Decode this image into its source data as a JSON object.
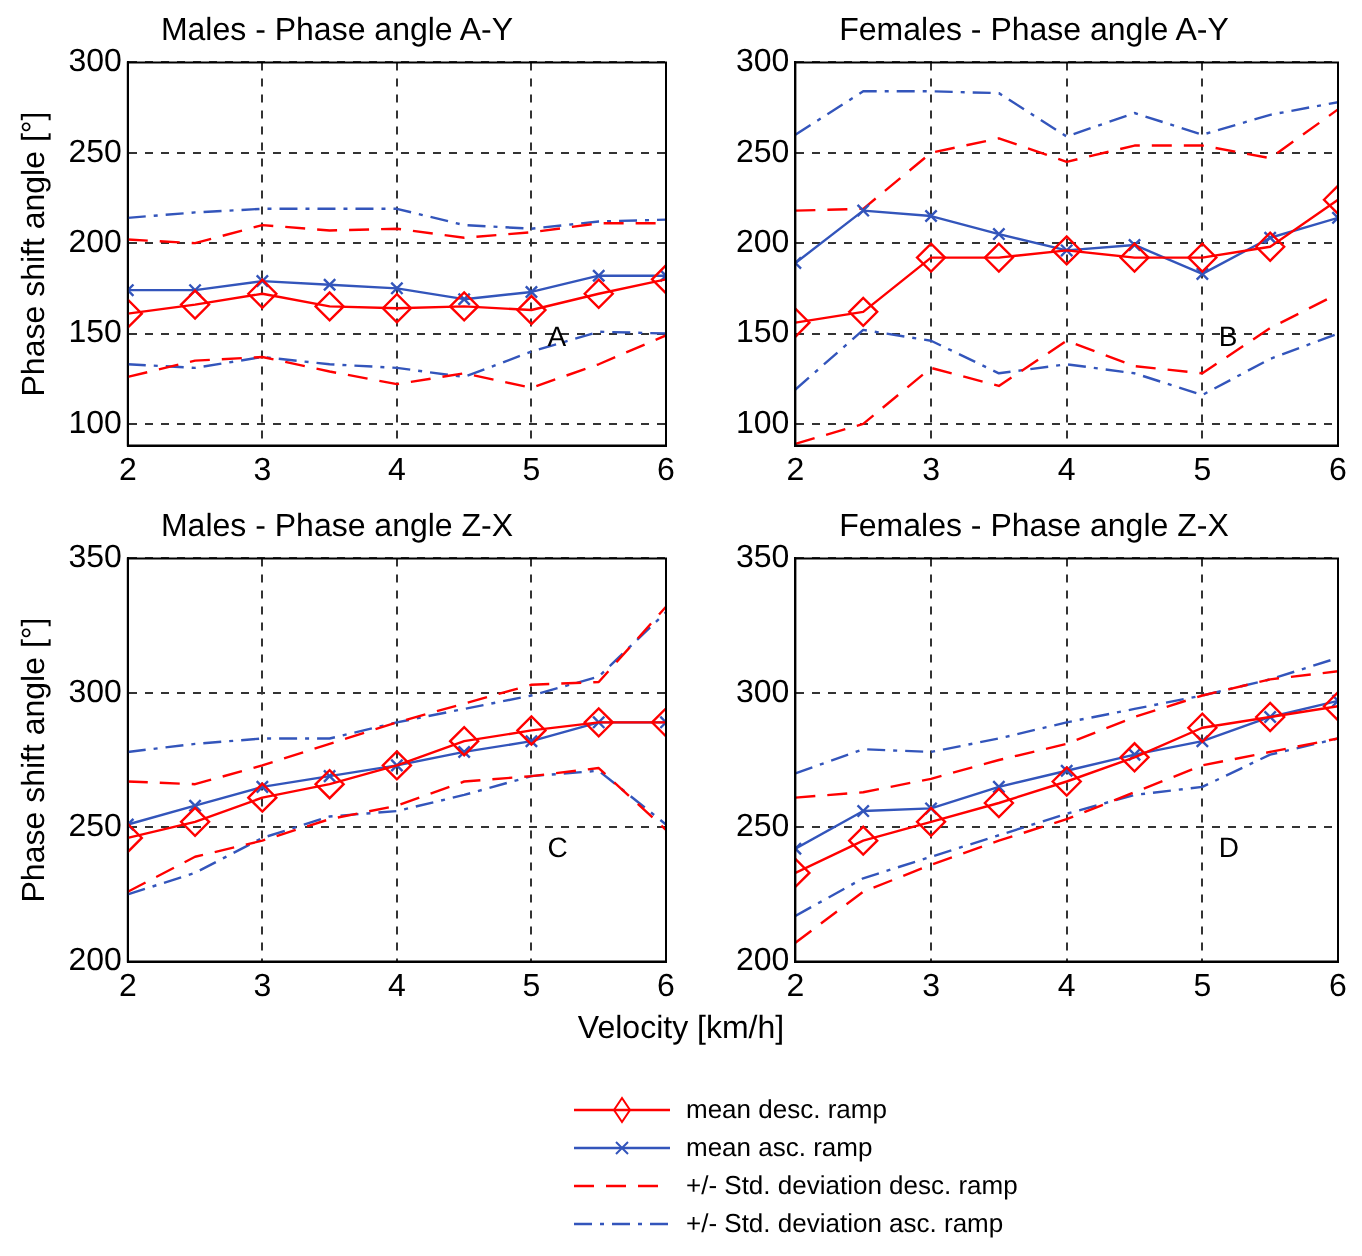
{
  "chart_data": [
    {
      "type": "line",
      "title": "Males - Phase angle A-Y",
      "ylabel": "Phase shift angle [°]",
      "x": [
        2,
        2.5,
        3,
        3.5,
        4,
        4.5,
        5,
        5.5,
        6
      ],
      "xlim": [
        2,
        6
      ],
      "xticks": [
        2,
        3,
        4,
        5,
        6
      ],
      "ylim": [
        88,
        300
      ],
      "yticks": [
        100,
        150,
        200,
        250,
        300
      ],
      "grid": true,
      "legend": "bottom",
      "annotations": [
        "A"
      ],
      "series": [
        {
          "name": "mean desc. ramp",
          "color": "#ff0000",
          "marker": "diamond",
          "line_style": "solid",
          "values": [
            161,
            166,
            172,
            165,
            164,
            165,
            163,
            172,
            180
          ]
        },
        {
          "name": "mean asc. ramp",
          "color": "#3355bb",
          "marker": "cross",
          "line_style": "solid",
          "values": [
            174,
            174,
            179,
            177,
            175,
            169,
            173,
            182,
            182
          ]
        },
        {
          "name": "+/- Std. deviation desc. ramp",
          "color": "#ff0000",
          "marker": "none",
          "line_style": "dashed",
          "values": [
            202,
            200,
            210,
            207,
            208,
            203,
            206,
            211,
            211
          ]
        },
        {
          "color": "#ff0000",
          "marker": "none",
          "line_style": "dashed",
          "values": [
            126,
            135,
            137,
            129,
            122,
            128,
            120,
            133,
            149
          ]
        },
        {
          "name": "+/- Std. deviation asc. ramp",
          "color": "#3355bb",
          "marker": "none",
          "line_style": "dotted",
          "values": [
            214,
            217,
            219,
            219,
            219,
            210,
            208,
            212,
            213
          ]
        },
        {
          "color": "#3355bb",
          "marker": "none",
          "line_style": "dotted",
          "values": [
            133,
            131,
            137,
            133,
            131,
            126,
            140,
            151,
            150
          ]
        }
      ]
    },
    {
      "type": "line",
      "title": "Females - Phase angle A-Y",
      "x": [
        2,
        2.5,
        3,
        3.5,
        4,
        4.5,
        5,
        5.5,
        6
      ],
      "xlim": [
        2,
        6
      ],
      "xticks": [
        2,
        3,
        4,
        5,
        6
      ],
      "ylim": [
        88,
        300
      ],
      "yticks": [
        100,
        150,
        200,
        250,
        300
      ],
      "grid": true,
      "legend": "bottom",
      "annotations": [
        "B"
      ],
      "series": [
        {
          "name": "mean desc. ramp",
          "color": "#ff0000",
          "marker": "diamond",
          "line_style": "solid",
          "values": [
            156,
            162,
            192,
            192,
            196,
            192,
            192,
            198,
            224
          ]
        },
        {
          "name": "mean asc. ramp",
          "color": "#3355bb",
          "marker": "cross",
          "line_style": "solid",
          "values": [
            189,
            218,
            215,
            205,
            196,
            199,
            183,
            203,
            214
          ]
        },
        {
          "name": "+/- Std. deviation desc. ramp",
          "color": "#ff0000",
          "marker": "none",
          "line_style": "dashed",
          "values": [
            218,
            219,
            250,
            258,
            245,
            254,
            254,
            247,
            274
          ]
        },
        {
          "color": "#ff0000",
          "marker": "none",
          "line_style": "dashed",
          "values": [
            89,
            100,
            131,
            121,
            146,
            132,
            128,
            153,
            172
          ]
        },
        {
          "name": "+/- Std. deviation asc. ramp",
          "color": "#3355bb",
          "marker": "none",
          "line_style": "dotted",
          "values": [
            260,
            284,
            284,
            283,
            259,
            272,
            260,
            271,
            278
          ]
        },
        {
          "color": "#3355bb",
          "marker": "none",
          "line_style": "dotted",
          "values": [
            119,
            152,
            146,
            128,
            133,
            128,
            116,
            136,
            150
          ]
        }
      ]
    },
    {
      "type": "line",
      "title": "Males - Phase angle Z-X",
      "ylabel": "Phase shift angle [°]",
      "xlabel": "Velocity [km/h]",
      "x": [
        2,
        2.5,
        3,
        3.5,
        4,
        4.5,
        5,
        5.5,
        6
      ],
      "xlim": [
        2,
        6
      ],
      "xticks": [
        2,
        3,
        4,
        5,
        6
      ],
      "ylim": [
        200,
        350
      ],
      "yticks": [
        200,
        250,
        300,
        350
      ],
      "grid": true,
      "legend": "bottom",
      "annotations": [
        "C"
      ],
      "series": [
        {
          "name": "mean desc. ramp",
          "color": "#ff0000",
          "marker": "diamond",
          "line_style": "solid",
          "values": [
            246,
            252,
            261,
            266,
            273,
            282,
            286,
            289,
            289
          ]
        },
        {
          "name": "mean asc. ramp",
          "color": "#3355bb",
          "marker": "cross",
          "line_style": "solid",
          "values": [
            251,
            258,
            265,
            269,
            273,
            278,
            282,
            289,
            289
          ]
        },
        {
          "name": "+/- Std. deviation desc. ramp",
          "color": "#ff0000",
          "marker": "none",
          "line_style": "dashed",
          "values": [
            267,
            266,
            273,
            281,
            289,
            296,
            303,
            304,
            332
          ]
        },
        {
          "color": "#ff0000",
          "marker": "none",
          "line_style": "dashed",
          "values": [
            226,
            239,
            245,
            253,
            258,
            267,
            269,
            272,
            249
          ]
        },
        {
          "name": "+/- Std. deviation asc. ramp",
          "color": "#3355bb",
          "marker": "none",
          "line_style": "dotted",
          "values": [
            278,
            281,
            283,
            283,
            289,
            294,
            299,
            306,
            330
          ]
        },
        {
          "color": "#3355bb",
          "marker": "none",
          "line_style": "dotted",
          "values": [
            225,
            233,
            246,
            254,
            256,
            262,
            269,
            271,
            251
          ]
        }
      ]
    },
    {
      "type": "line",
      "title": "Females - Phase angle Z-X",
      "x": [
        2,
        2.5,
        3,
        3.5,
        4,
        4.5,
        5,
        5.5,
        6
      ],
      "xlim": [
        2,
        6
      ],
      "xticks": [
        2,
        3,
        4,
        5,
        6
      ],
      "ylim": [
        200,
        350
      ],
      "yticks": [
        200,
        250,
        300,
        350
      ],
      "grid": true,
      "legend": "bottom",
      "annotations": [
        "D"
      ],
      "series": [
        {
          "name": "mean desc. ramp",
          "color": "#ff0000",
          "marker": "diamond",
          "line_style": "solid",
          "values": [
            233,
            245,
            252,
            259,
            267,
            276,
            287,
            291,
            295
          ]
        },
        {
          "name": "mean asc. ramp",
          "color": "#3355bb",
          "marker": "cross",
          "line_style": "solid",
          "values": [
            242,
            256,
            257,
            265,
            271,
            277,
            282,
            291,
            297
          ]
        },
        {
          "name": "+/- Std. deviation desc. ramp",
          "color": "#ff0000",
          "marker": "none",
          "line_style": "dashed",
          "values": [
            261,
            263,
            268,
            275,
            281,
            291,
            299,
            305,
            308
          ]
        },
        {
          "color": "#ff0000",
          "marker": "none",
          "line_style": "dashed",
          "values": [
            207,
            226,
            236,
            245,
            253,
            263,
            273,
            278,
            283
          ]
        },
        {
          "name": "+/- Std. deviation asc. ramp",
          "color": "#3355bb",
          "marker": "none",
          "line_style": "dotted",
          "values": [
            270,
            279,
            278,
            283,
            289,
            294,
            299,
            305,
            313
          ]
        },
        {
          "color": "#3355bb",
          "marker": "none",
          "line_style": "dotted",
          "values": [
            217,
            231,
            239,
            247,
            255,
            262,
            265,
            277,
            283
          ]
        }
      ]
    }
  ]
}
